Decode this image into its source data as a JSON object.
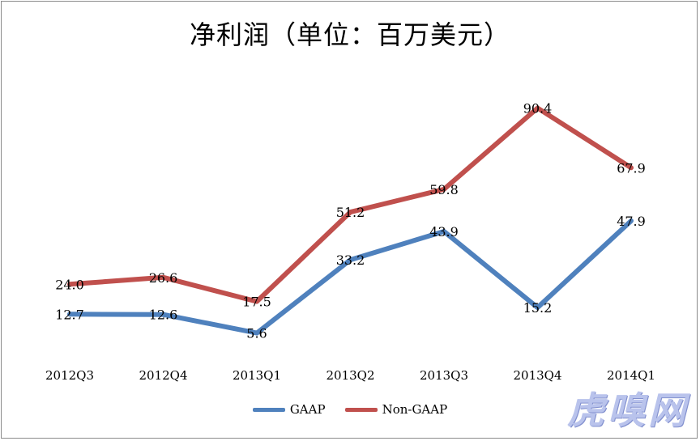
{
  "chart_data": {
    "type": "line",
    "title": "净利润（单位：百万美元）",
    "categories": [
      "2012Q3",
      "2012Q4",
      "2013Q1",
      "2013Q2",
      "2013Q3",
      "2013Q4",
      "2014Q1"
    ],
    "series": [
      {
        "name": "GAAP",
        "values": [
          12.7,
          12.6,
          5.6,
          33.2,
          43.9,
          15.2,
          47.9
        ],
        "labels": [
          "12.7",
          "12.6",
          "5.6",
          "33.2",
          "43.9",
          "15.2",
          "47.9"
        ],
        "color": "#4f81bd"
      },
      {
        "name": "Non-GAAP",
        "values": [
          24.0,
          26.6,
          17.5,
          51.2,
          59.8,
          90.4,
          67.9
        ],
        "labels": [
          "24.0",
          "26.6",
          "17.5",
          "51.2",
          "59.8",
          "90.4",
          "67.9"
        ],
        "color": "#c0504d"
      }
    ],
    "ylim": [
      0,
      100
    ],
    "grid": false,
    "legend": "bottom"
  },
  "watermark": "虎嗅网"
}
